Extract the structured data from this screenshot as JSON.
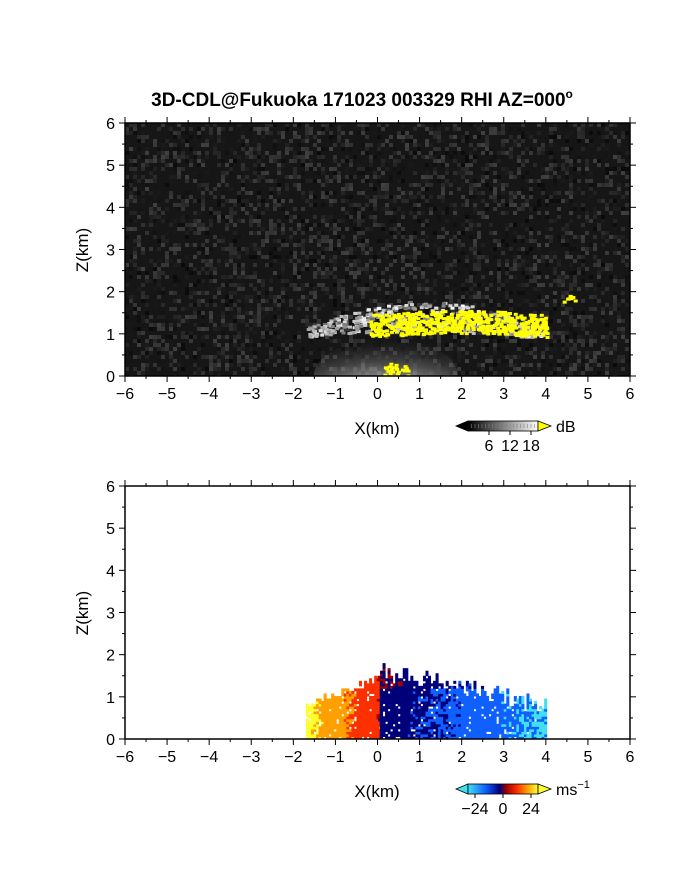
{
  "chart_data": {
    "title": "3D-CDL@Fukuoka 171023 003329 RHI AZ=000",
    "title_sup": "o",
    "panels": [
      {
        "type": "heatmap",
        "field": "intensity",
        "xlabel": "X(km)",
        "ylabel": "Z(km)",
        "xlim": [
          -6,
          6
        ],
        "ylim": [
          0,
          6
        ],
        "xticks": [
          -6,
          -5,
          -4,
          -3,
          -2,
          -1,
          0,
          1,
          2,
          3,
          4,
          5,
          6
        ],
        "yticks": [
          0,
          1,
          2,
          3,
          4,
          5,
          6
        ],
        "background": "#161616",
        "colorbar": {
          "unit": "dB",
          "ticks": [
            6,
            12,
            18
          ],
          "range": [
            0,
            20
          ],
          "colors": [
            "#000000",
            "#ffffff"
          ],
          "over_color": "#ffff00"
        },
        "regions": [
          {
            "kind": "near-field glow",
            "x_range": [
              -0.8,
              1.2
            ],
            "z_range": [
              0,
              0.6
            ],
            "value_db": 14
          },
          {
            "kind": "cloud layer",
            "x_range": [
              -1.7,
              4.0
            ],
            "z_range": [
              0.9,
              1.8
            ],
            "value_db": 12
          },
          {
            "kind": "saturated (>18 dB)",
            "x_range": [
              -0.2,
              4.0
            ],
            "z_range": [
              0.9,
              1.8
            ],
            "value_db": 20
          },
          {
            "kind": "saturated (>18 dB)",
            "x_range": [
              0.1,
              0.7
            ],
            "z_range": [
              0.0,
              0.35
            ],
            "value_db": 20
          },
          {
            "kind": "saturated (>18 dB)",
            "x_range": [
              4.4,
              4.7
            ],
            "z_range": [
              1.85,
              1.95
            ],
            "value_db": 20
          }
        ]
      },
      {
        "type": "heatmap",
        "field": "radial velocity",
        "xlabel": "X(km)",
        "ylabel": "Z(km)",
        "xlim": [
          -6,
          6
        ],
        "ylim": [
          0,
          6
        ],
        "xticks": [
          -6,
          -5,
          -4,
          -3,
          -2,
          -1,
          0,
          1,
          2,
          3,
          4,
          5,
          6
        ],
        "yticks": [
          0,
          1,
          2,
          3,
          4,
          5,
          6
        ],
        "background": "#ffffff",
        "colorbar": {
          "unit": "ms",
          "unit_sup": "−1",
          "ticks": [
            "−24",
            "0",
            "24"
          ],
          "range": [
            -30,
            30
          ],
          "colors": [
            "#40e0f0",
            "#1060ff",
            "#00007a",
            "#a00000",
            "#ff3000",
            "#ffa000",
            "#ffff30"
          ]
        },
        "regions": [
          {
            "kind": "approaching (-)",
            "x_range": [
              0.0,
              4.0
            ],
            "z_range": [
              0.0,
              1.85
            ],
            "velocity": -15
          },
          {
            "kind": "receding (+)",
            "x_range": [
              -1.7,
              0.0
            ],
            "z_range": [
              0.0,
              1.5
            ],
            "velocity": 12
          }
        ]
      }
    ]
  }
}
